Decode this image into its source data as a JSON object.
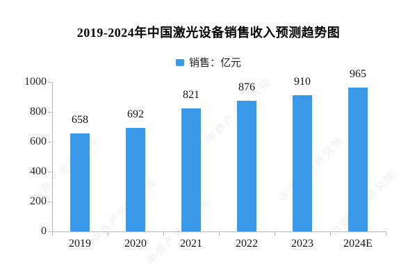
{
  "header": {
    "title": "2019-2024年中国激光设备销售收入预测趋势图"
  },
  "legend": {
    "label": "销售：亿元",
    "swatch_color": "#3A99E8"
  },
  "watermark": {
    "text": "中商产业研究院"
  },
  "chart_data": {
    "type": "bar",
    "title": "2019-2024年中国激光设备销售收入预测趋势图",
    "categories": [
      "2019",
      "2020",
      "2021",
      "2022",
      "2023",
      "2024E"
    ],
    "values": [
      658,
      692,
      821,
      876,
      910,
      965
    ],
    "series_name": "销售",
    "unit": "亿元",
    "xlabel": "",
    "ylabel": "",
    "ylim": [
      0,
      1000
    ],
    "yticks": [
      0,
      200,
      400,
      600,
      800,
      1000
    ],
    "grid": false,
    "legend_position": "top",
    "bar_color": "#3A99E8",
    "value_labels_shown": true,
    "axis_line_color": "#bbbbbb"
  }
}
